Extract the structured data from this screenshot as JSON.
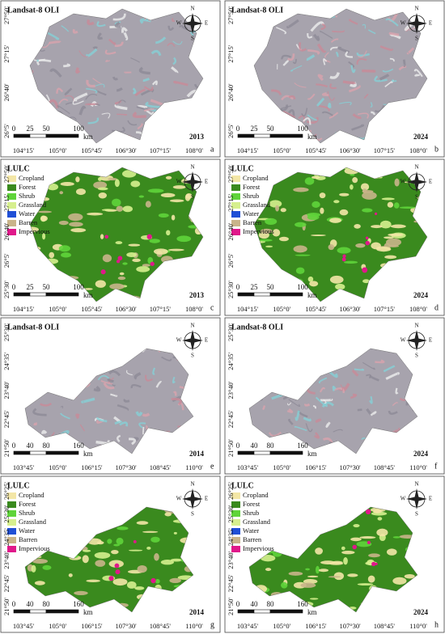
{
  "compass": {
    "n": "N",
    "s": "S",
    "w": "W",
    "e": "E"
  },
  "legend": [
    {
      "label": "Cropland",
      "color": "#f3e6a6"
    },
    {
      "label": "Forest",
      "color": "#3a8a1e"
    },
    {
      "label": "Shrub",
      "color": "#5fd43a"
    },
    {
      "label": "Grassland",
      "color": "#d6ef8e"
    },
    {
      "label": "Water",
      "color": "#1f4fd6"
    },
    {
      "label": "Barren",
      "color": "#c9b48a"
    },
    {
      "label": "Impervious",
      "color": "#e0188a"
    }
  ],
  "panels": [
    {
      "kind": "image",
      "title": "Landsat-8 OLI",
      "year": "2013",
      "letter": "a",
      "x_labels": [
        "104°15'",
        "105°0'",
        "105°45'",
        "106°30'",
        "107°15'",
        "108°0'"
      ],
      "y_labels": [
        "27°50'",
        "27°15'",
        "26°40'",
        "26°5'"
      ],
      "scale": [
        0,
        25,
        50,
        100
      ],
      "unit": "km"
    },
    {
      "kind": "image",
      "title": "Landsat-8 OLI",
      "year": "2024",
      "letter": "b",
      "x_labels": [
        "104°15'",
        "105°0'",
        "105°45'",
        "106°30'",
        "107°15'",
        "108°0'"
      ],
      "y_labels": [
        "27°50'",
        "27°15'",
        "26°40'",
        "26°5'"
      ],
      "scale": [
        0,
        25,
        50,
        100
      ],
      "unit": "km"
    },
    {
      "kind": "lulc",
      "title": "LULC",
      "year": "2013",
      "letter": "c",
      "x_labels": [
        "104°15'",
        "105°0'",
        "105°45'",
        "106°30'",
        "107°15'",
        "108°0'"
      ],
      "y_labels": [
        "27°50'",
        "27°15'",
        "26°40'",
        "26°5'",
        "25°30'"
      ],
      "scale": [
        0,
        25,
        50,
        100
      ],
      "unit": "km"
    },
    {
      "kind": "lulc",
      "title": "LULC",
      "year": "2024",
      "letter": "d",
      "x_labels": [
        "104°15'",
        "105°0'",
        "105°45'",
        "106°30'",
        "107°15'",
        "108°0'"
      ],
      "y_labels": [
        "27°50'",
        "27°15'",
        "26°40'",
        "26°5'",
        "25°30'"
      ],
      "scale": [
        0,
        25,
        50,
        100
      ],
      "unit": "km"
    },
    {
      "kind": "image",
      "title": "Landsat-8 OLI",
      "year": "2014",
      "letter": "e",
      "x_labels": [
        "103°45'",
        "105°0'",
        "106°15'",
        "107°30'",
        "108°45'",
        "110°0'"
      ],
      "y_labels": [
        "25°30'",
        "24°35'",
        "23°40'",
        "22°45'",
        "21°50'"
      ],
      "scale": [
        0,
        40,
        80,
        160
      ],
      "unit": "km"
    },
    {
      "kind": "image",
      "title": "Landsat-8 OLI",
      "year": "2024",
      "letter": "f",
      "x_labels": [
        "103°45'",
        "105°0'",
        "106°15'",
        "107°30'",
        "108°45'",
        "110°0'"
      ],
      "y_labels": [
        "25°30'",
        "24°35'",
        "23°40'",
        "22°45'",
        "21°50'"
      ],
      "scale": [
        0,
        40,
        80,
        160
      ],
      "unit": "km"
    },
    {
      "kind": "lulc",
      "title": "LULC",
      "year": "2014",
      "letter": "g",
      "x_labels": [
        "103°45'",
        "105°0'",
        "106°15'",
        "107°30'",
        "108°45'",
        "110°0'"
      ],
      "y_labels": [
        "26°25'",
        "25°30'",
        "24°35'",
        "23°40'",
        "22°45'",
        "21°50'"
      ],
      "scale": [
        0,
        40,
        80,
        160
      ],
      "unit": "km"
    },
    {
      "kind": "lulc",
      "title": "LULC",
      "year": "2024",
      "letter": "h",
      "x_labels": [
        "103°45'",
        "105°0'",
        "106°15'",
        "107°30'",
        "108°45'",
        "110°0'"
      ],
      "y_labels": [
        "26°25'",
        "25°30'",
        "24°35'",
        "23°40'",
        "22°45'",
        "21°50'"
      ],
      "scale": [
        0,
        40,
        80,
        160
      ],
      "unit": "km"
    }
  ]
}
